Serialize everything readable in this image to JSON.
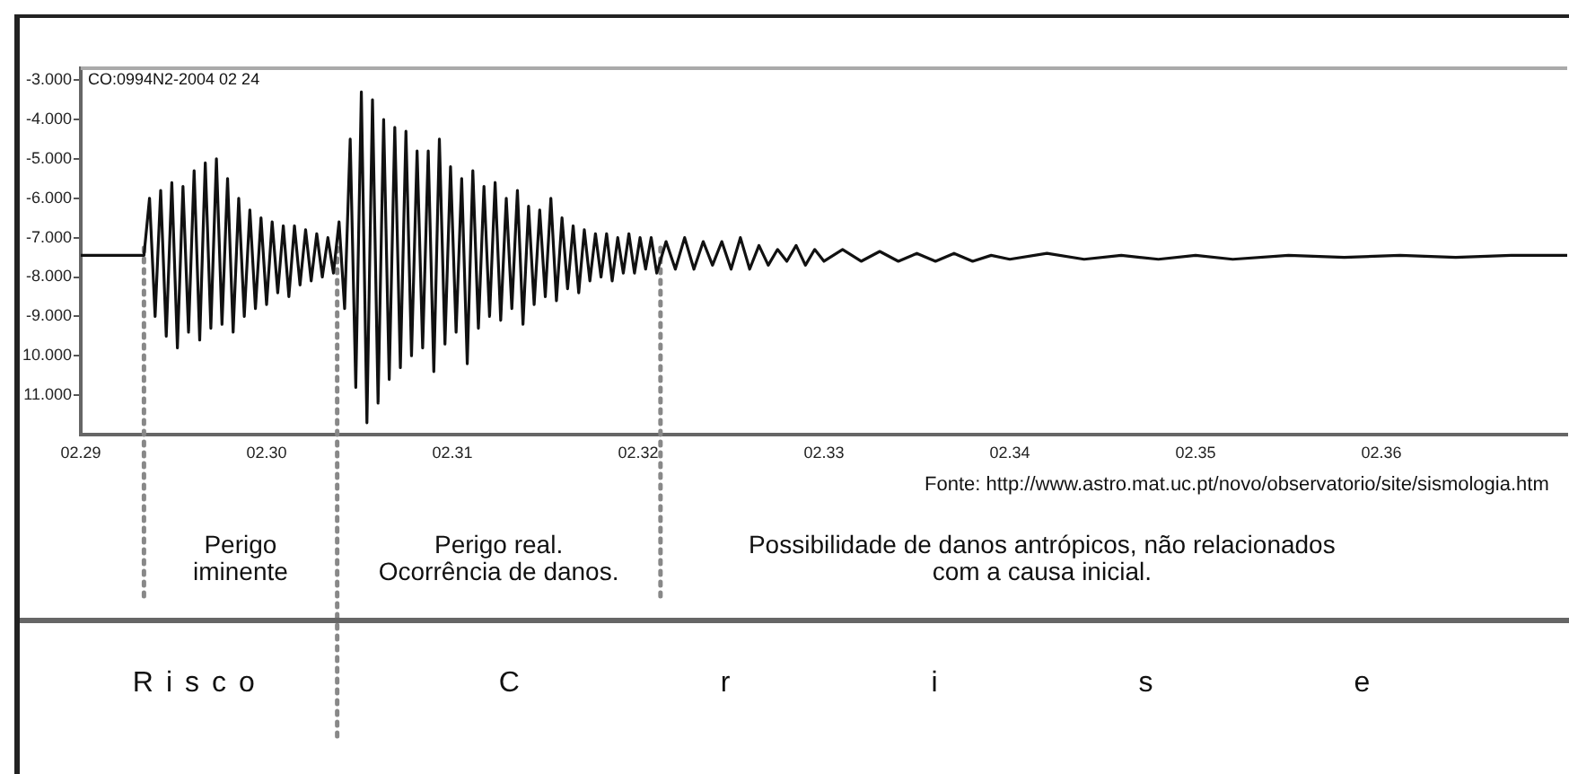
{
  "chart_data": {
    "type": "line",
    "x": [
      2.29,
      2.2934,
      2.2937,
      2.294,
      2.2943,
      2.2946,
      2.2949,
      2.2952,
      2.2955,
      2.2958,
      2.2961,
      2.2964,
      2.2967,
      2.297,
      2.2973,
      2.2976,
      2.2979,
      2.2982,
      2.2985,
      2.2988,
      2.2991,
      2.2994,
      2.2997,
      2.3,
      2.3003,
      2.3006,
      2.3009,
      2.3012,
      2.3015,
      2.3018,
      2.3021,
      2.3024,
      2.3027,
      2.303,
      2.3033,
      2.3036,
      2.3039,
      2.3042,
      2.3045,
      2.3048,
      2.3051,
      2.3054,
      2.3057,
      2.306,
      2.3063,
      2.3066,
      2.3069,
      2.3072,
      2.3075,
      2.3078,
      2.3081,
      2.3084,
      2.3087,
      2.309,
      2.3093,
      2.3096,
      2.3099,
      2.3102,
      2.3105,
      2.3108,
      2.3111,
      2.3114,
      2.3117,
      2.312,
      2.3123,
      2.3126,
      2.3129,
      2.3132,
      2.3135,
      2.3138,
      2.3141,
      2.3144,
      2.3147,
      2.315,
      2.3153,
      2.3156,
      2.3159,
      2.3162,
      2.3165,
      2.3168,
      2.3171,
      2.3174,
      2.3177,
      2.318,
      2.3183,
      2.3186,
      2.3189,
      2.3192,
      2.3195,
      2.3198,
      2.3201,
      2.3204,
      2.3207,
      2.321,
      2.3215,
      2.322,
      2.3225,
      2.323,
      2.3235,
      2.324,
      2.3245,
      2.325,
      2.3255,
      2.326,
      2.3265,
      2.327,
      2.3275,
      2.328,
      2.3285,
      2.329,
      2.3295,
      2.33,
      2.331,
      2.332,
      2.333,
      2.334,
      2.335,
      2.336,
      2.337,
      2.338,
      2.339,
      2.34,
      2.342,
      2.344,
      2.346,
      2.348,
      2.35,
      2.352,
      2.355,
      2.358,
      2.361,
      2.364,
      2.367,
      2.37
    ],
    "series": [
      {
        "color": "#111111",
        "values": [
          -7.45,
          -7.45,
          -6.0,
          -9.0,
          -5.8,
          -9.5,
          -5.6,
          -9.8,
          -5.7,
          -9.4,
          -5.3,
          -9.6,
          -5.1,
          -9.3,
          -5.0,
          -9.2,
          -5.5,
          -9.4,
          -6.0,
          -9.0,
          -6.3,
          -8.8,
          -6.5,
          -8.7,
          -6.6,
          -8.4,
          -6.7,
          -8.5,
          -6.7,
          -8.2,
          -6.8,
          -8.1,
          -6.9,
          -8.0,
          -7.0,
          -7.9,
          -6.6,
          -8.8,
          -4.5,
          -10.8,
          -3.3,
          -11.7,
          -3.5,
          -11.2,
          -4.0,
          -10.6,
          -4.2,
          -10.3,
          -4.3,
          -10.0,
          -4.8,
          -9.8,
          -4.8,
          -10.4,
          -4.5,
          -9.7,
          -5.2,
          -9.4,
          -5.5,
          -10.2,
          -5.3,
          -9.3,
          -5.7,
          -9.0,
          -5.6,
          -9.1,
          -6.0,
          -8.8,
          -5.8,
          -9.2,
          -6.2,
          -8.7,
          -6.3,
          -8.5,
          -6.0,
          -8.6,
          -6.5,
          -8.3,
          -6.7,
          -8.4,
          -6.8,
          -8.1,
          -6.9,
          -8.0,
          -6.9,
          -8.1,
          -7.0,
          -7.9,
          -6.9,
          -7.9,
          -7.0,
          -7.8,
          -7.0,
          -7.9,
          -7.1,
          -7.8,
          -7.0,
          -7.8,
          -7.1,
          -7.7,
          -7.1,
          -7.8,
          -7.0,
          -7.8,
          -7.2,
          -7.7,
          -7.3,
          -7.6,
          -7.2,
          -7.7,
          -7.3,
          -7.6,
          -7.3,
          -7.6,
          -7.35,
          -7.6,
          -7.4,
          -7.6,
          -7.4,
          -7.6,
          -7.45,
          -7.55,
          -7.4,
          -7.55,
          -7.45,
          -7.55,
          -7.45,
          -7.55,
          -7.45,
          -7.5,
          -7.45,
          -7.5,
          -7.45,
          -7.45
        ]
      }
    ],
    "line_style": "solid",
    "xlim": [
      2.29,
      2.37
    ],
    "xticks": [
      {
        "value": 2.29,
        "label": "02.29"
      },
      {
        "value": 2.3,
        "label": "02.30"
      },
      {
        "value": 2.31,
        "label": "02.31"
      },
      {
        "value": 2.32,
        "label": "02.32"
      },
      {
        "value": 2.33,
        "label": "02.33"
      },
      {
        "value": 2.34,
        "label": "02.34"
      },
      {
        "value": 2.35,
        "label": "02.35"
      },
      {
        "value": 2.36,
        "label": "02.36"
      }
    ],
    "ylim": [
      -12,
      -2.7
    ],
    "yticks": [
      {
        "value": -3,
        "label": "-3.000"
      },
      {
        "value": -4,
        "label": "-4.000"
      },
      {
        "value": -5,
        "label": "-5.000"
      },
      {
        "value": -6,
        "label": "-6.000"
      },
      {
        "value": -7,
        "label": "-7.000"
      },
      {
        "value": -8,
        "label": "-8.000"
      },
      {
        "value": -9,
        "label": "-9.000"
      },
      {
        "value": -10,
        "label": "10.000"
      },
      {
        "value": -11,
        "label": "11.000"
      }
    ],
    "ref_lines": [
      {
        "axis": "x",
        "value": 2.2934,
        "color": "#888888",
        "line_style": "dotted"
      },
      {
        "axis": "x",
        "value": 2.3038,
        "color": "#888888",
        "line_style": "dotted"
      },
      {
        "axis": "x",
        "value": 2.3212,
        "color": "#888888",
        "line_style": "dotted"
      }
    ],
    "annotations": [
      "CO:0994N2-2004 02 24",
      "Fonte: http://www.astro.mat.uc.pt/novo/observatorio/site/sismologia.htm",
      "Perigo\niminente",
      "Perigo real.\nOcorrência de danos.",
      "Possibilidade de danos antrópicos, não relacionados\ncom a causa inicial.",
      "Risco",
      "Crise"
    ]
  }
}
